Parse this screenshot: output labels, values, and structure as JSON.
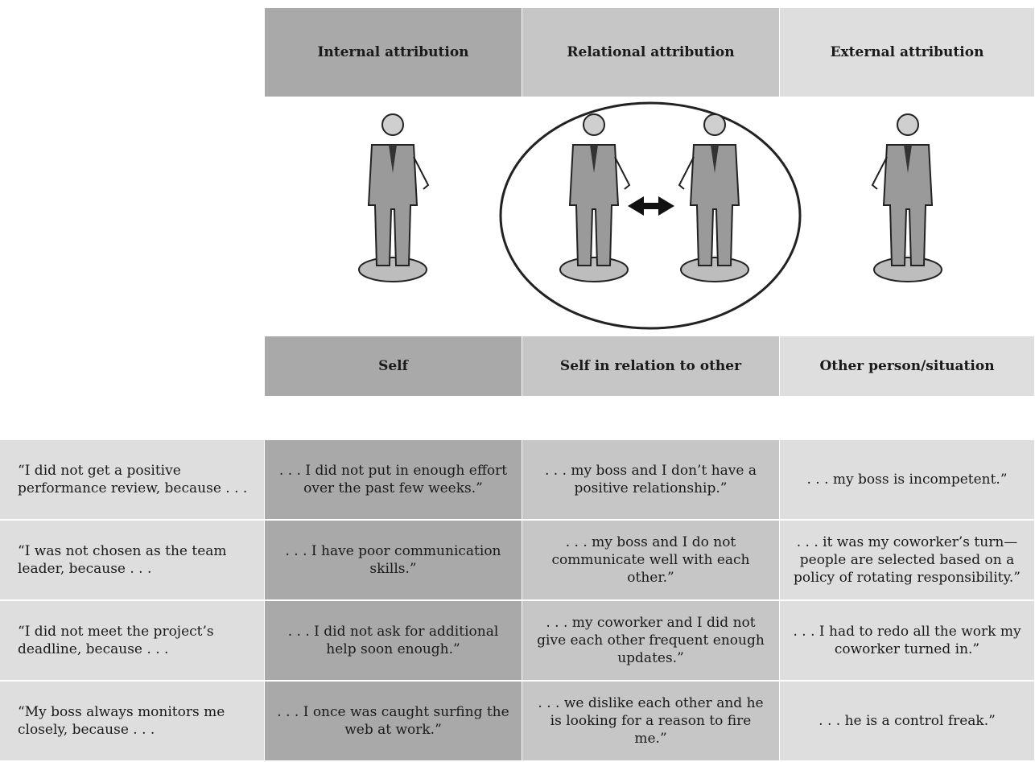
{
  "header": {
    "columns": [
      "Internal attribution",
      "Relational attribution",
      "External attribution"
    ]
  },
  "subheader": {
    "columns": [
      "Self",
      "Self in relation to other",
      "Other person/situation"
    ]
  },
  "table": {
    "rows": [
      [
        "“I did not get a positive performance review, because . . .",
        ". . . I did not put in enough effort over the past few weeks.”",
        ". . . my boss and I don’t have a positive relationship.”",
        ". . . my boss is incompetent.”"
      ],
      [
        "“I was not chosen as the team leader, because . . .",
        ". . . I have poor communication skills.”",
        ". . . my boss and I do not communicate well with each other.”",
        ". . . it was my coworker’s turn—people are selected based on a policy of rotating responsibility.”"
      ],
      [
        "“I did not meet the project’s deadline, because . . .",
        ". . . I did not ask for additional help soon enough.”",
        ". . . my coworker and I did not give each other frequent enough updates.”",
        ". . . I had to redo all the work my coworker turned in.”"
      ],
      [
        "“My boss always monitors me closely, because . . .",
        ". . . I once was caught surfing the web at work.”",
        ". . . we dislike each other and he is looking for a reason to fire me.”",
        ". . . he is a control freak.”"
      ]
    ]
  }
}
